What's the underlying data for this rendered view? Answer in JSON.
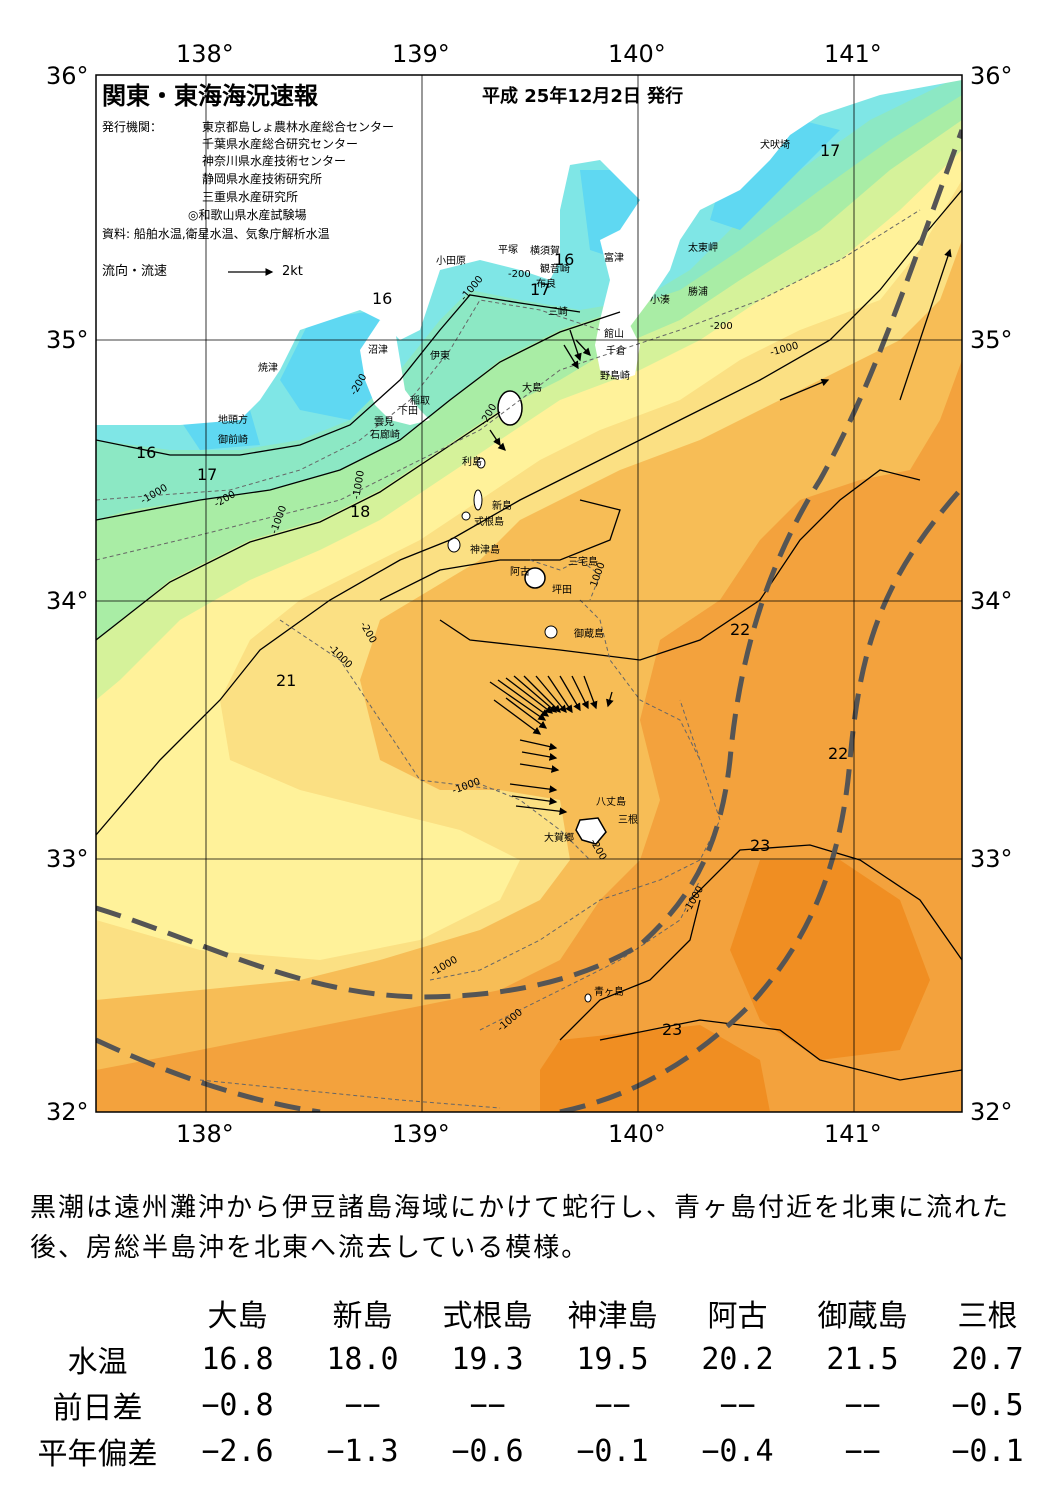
{
  "header": {
    "title": "関東・東海海況速報",
    "date": "平成 25年12月2日 発行",
    "publisher_label": "発行機関：",
    "publishers": [
      "東京都島しょ農林水産総合センター",
      "千葉県水産総合研究センター",
      "神奈川県水産技術センター",
      "静岡県水産技術研究所",
      "三重県水産研究所",
      "◎和歌山県水産試験場"
    ],
    "source": "資料: 船舶水温,衛星水温、気象庁解析水温",
    "flow_legend": "流向・流速",
    "flow_scale": "2kt"
  },
  "axes": {
    "lon_labels": [
      "138°",
      "139°",
      "140°",
      "141°"
    ],
    "lat_labels": [
      "36°",
      "35°",
      "34°",
      "33°",
      "32°"
    ]
  },
  "isotherm_labels": [
    "16",
    "16",
    "17",
    "16",
    "17",
    "18",
    "21",
    "22",
    "22",
    "23",
    "23",
    "17"
  ],
  "depth_labels": [
    "-1000",
    "-200",
    "-1000",
    "-200",
    "-200",
    "-1000",
    "-200",
    "-1000",
    "-1000",
    "-1000",
    "-200",
    "-1000",
    "-200",
    "-1000",
    "-1000",
    "1000",
    "-1000",
    "-200"
  ],
  "places": [
    "犬吠埼",
    "太東岬",
    "勝浦",
    "小湊",
    "富津",
    "館山",
    "千倉",
    "野島崎",
    "横須賀",
    "観音崎",
    "平塚",
    "小田原",
    "布良",
    "三崎",
    "沼津",
    "伊東",
    "焼津",
    "稲取",
    "下田",
    "雲見",
    "石廊崎",
    "地頭方",
    "御前崎",
    "大島",
    "利島",
    "新島",
    "式根島",
    "神津島",
    "三宅島",
    "阿古",
    "坪田",
    "御蔵島",
    "八丈島",
    "三根",
    "大賀郷",
    "青ヶ島"
  ],
  "description": "黒潮は遠州灘沖から伊豆諸島海域にかけて蛇行し、青ヶ島付近を北東に流れた後、房総半島沖を北東へ流去している模様。",
  "table": {
    "columns": [
      "大島",
      "新島",
      "式根島",
      "神津島",
      "阿古",
      "御蔵島",
      "三根"
    ],
    "rows": [
      {
        "label": "水温",
        "values": [
          "16.8",
          "18.0",
          "19.3",
          "19.5",
          "20.2",
          "21.5",
          "20.7"
        ]
      },
      {
        "label": "前日差",
        "values": [
          "−0.8",
          "−−",
          "−−",
          "−−",
          "−−",
          "−−",
          "−0.5"
        ]
      },
      {
        "label": "平年偏差",
        "values": [
          "−2.6",
          "−1.3",
          "−0.6",
          "−0.1",
          "−0.4",
          "−−",
          "−0.1"
        ]
      }
    ]
  },
  "colors": {
    "t15": "#5fd8f2",
    "t16": "#7fe6e6",
    "t17": "#8ce8c4",
    "t18": "#a9eda5",
    "t19": "#d5f29a",
    "t20": "#fff29a",
    "t21": "#fbe083",
    "t22": "#f7bd56",
    "t23": "#f3a23d",
    "t24": "#f08e22",
    "land": "#ffffff",
    "kuroshio": "#555555"
  }
}
